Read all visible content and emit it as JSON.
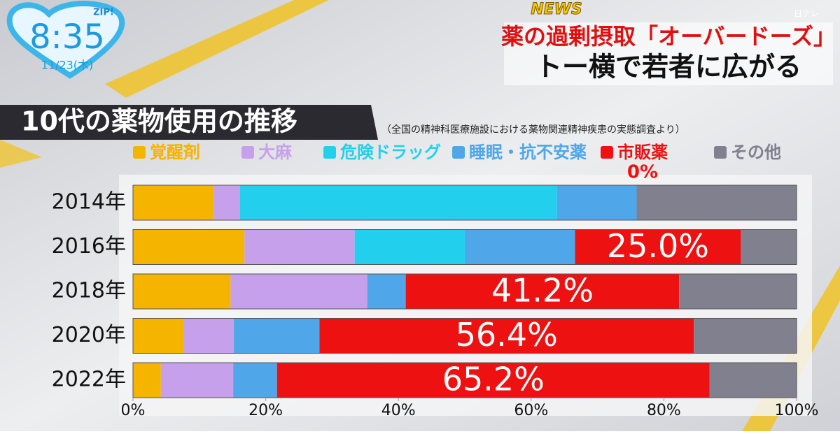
{
  "broadcast": {
    "show": "ZIP!",
    "time": "8:35",
    "date": "11/23(木)",
    "channel": "日テレ",
    "tag": "NEWS",
    "headline": [
      "薬の過剰摂取「オーバードーズ」",
      "トー横で若者に広がる"
    ]
  },
  "chart_data": {
    "type": "stacked-bar-horizontal",
    "title": "10代の薬物使用の推移",
    "subtitle": "（全国の精神科医療施設における薬物関連精神疾患の実態調査より）",
    "categories": [
      "2014年",
      "2016年",
      "2018年",
      "2020年",
      "2022年"
    ],
    "series": [
      {
        "name": "覚醒剤",
        "color": "#f5b400",
        "values": [
          12.1,
          16.8,
          14.7,
          7.6,
          4.2
        ]
      },
      {
        "name": "大麻",
        "color": "#c7a0ec",
        "values": [
          4.0,
          16.6,
          20.6,
          7.6,
          10.9
        ]
      },
      {
        "name": "危険ドラッグ",
        "color": "#22d0ee",
        "values": [
          47.8,
          16.6,
          0,
          0,
          0
        ]
      },
      {
        "name": "睡眠・抗不安薬",
        "color": "#4fa6e8",
        "values": [
          12.0,
          16.6,
          5.8,
          12.9,
          6.6
        ]
      },
      {
        "name": "市販薬",
        "color": "#ee1111",
        "values": [
          0,
          25.0,
          41.2,
          56.4,
          65.2
        ],
        "value_labels": [
          "0%",
          "25.0%",
          "41.2%",
          "56.4%",
          "65.2%"
        ]
      },
      {
        "name": "その他",
        "color": "#80808f",
        "values": [
          24.1,
          8.4,
          17.7,
          15.5,
          13.1
        ]
      }
    ],
    "xlim": [
      0,
      100
    ],
    "xticks": [
      {
        "value": 0,
        "label": "0%"
      },
      {
        "value": 20,
        "label": "20%"
      },
      {
        "value": 40,
        "label": "40%"
      },
      {
        "value": 60,
        "label": "60%"
      },
      {
        "value": 80,
        "label": "80%"
      },
      {
        "value": 100,
        "label": "100%"
      }
    ]
  }
}
